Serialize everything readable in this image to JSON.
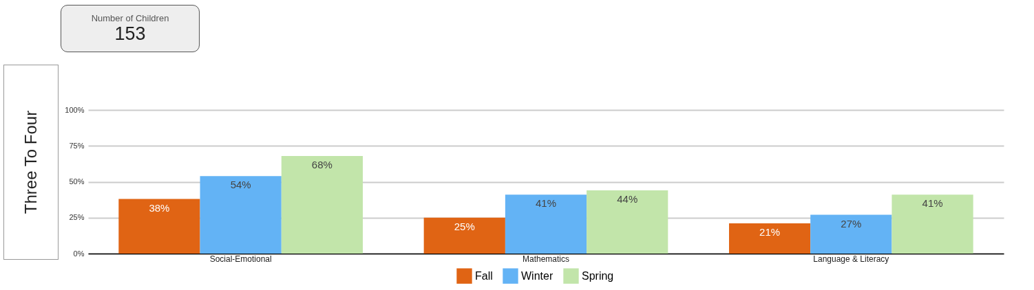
{
  "chart_data": {
    "type": "bar",
    "ylabel": "Three To Four",
    "annotations": [
      "Number of Children",
      "153"
    ],
    "categories": [
      "Social-Emotional",
      "Mathematics",
      "Language & Literacy"
    ],
    "series": [
      {
        "name": "Fall",
        "color": "#e06414",
        "values": [
          38,
          25,
          21
        ],
        "value_labels": [
          "38%",
          "25%",
          "21%"
        ]
      },
      {
        "name": "Winter",
        "color": "#63b3f5",
        "values": [
          54,
          41,
          27
        ],
        "value_labels": [
          "54%",
          "41%",
          "27%"
        ]
      },
      {
        "name": "Spring",
        "color": "#c2e5aa",
        "values": [
          68,
          44,
          41
        ],
        "value_labels": [
          "68%",
          "44%",
          "41%"
        ]
      }
    ],
    "ylim": [
      0,
      100
    ],
    "yticks": [
      {
        "value": 0,
        "label": "0%"
      },
      {
        "value": 25,
        "label": "25%"
      },
      {
        "value": 50,
        "label": "50%"
      },
      {
        "value": 75,
        "label": "75%"
      },
      {
        "value": 100,
        "label": "100%"
      }
    ],
    "grid": "y",
    "legend": "bottom"
  }
}
